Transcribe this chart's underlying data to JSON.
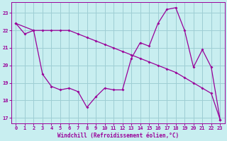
{
  "xlabel": "Windchill (Refroidissement éolien,°C)",
  "background_color": "#c8eef0",
  "grid_color": "#9ecdd4",
  "line_color": "#990099",
  "xlim": [
    -0.5,
    23.5
  ],
  "ylim": [
    16.7,
    23.6
  ],
  "yticks": [
    17,
    18,
    19,
    20,
    21,
    22,
    23
  ],
  "xticks": [
    0,
    1,
    2,
    3,
    4,
    5,
    6,
    7,
    8,
    9,
    10,
    11,
    12,
    13,
    14,
    15,
    16,
    17,
    18,
    19,
    20,
    21,
    22,
    23
  ],
  "line1_x": [
    0,
    1,
    2,
    3,
    4,
    5,
    6,
    7,
    8,
    9,
    10,
    11,
    12,
    13,
    14,
    15,
    16,
    17,
    18,
    19,
    20,
    21,
    22,
    23
  ],
  "line1_y": [
    22.4,
    21.8,
    22.0,
    22.0,
    22.0,
    22.0,
    22.0,
    21.8,
    21.6,
    21.4,
    21.2,
    21.0,
    20.8,
    20.6,
    20.4,
    20.2,
    20.0,
    19.8,
    19.6,
    19.3,
    19.0,
    18.7,
    18.4,
    16.9
  ],
  "line2_x": [
    0,
    2,
    3,
    4,
    5,
    6,
    7,
    8,
    9,
    10,
    11,
    12,
    13,
    14,
    15,
    16,
    17,
    18,
    19,
    20,
    21,
    22,
    23
  ],
  "line2_y": [
    22.4,
    22.0,
    19.5,
    18.8,
    18.6,
    18.7,
    18.5,
    17.6,
    18.2,
    18.7,
    18.6,
    18.6,
    20.4,
    21.3,
    21.1,
    22.4,
    23.2,
    23.3,
    22.0,
    19.9,
    20.9,
    19.9,
    16.9
  ]
}
